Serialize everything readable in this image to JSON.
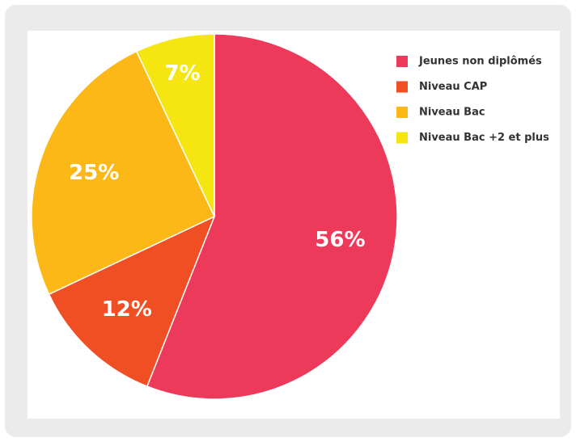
{
  "chart_data": {
    "type": "pie",
    "categories": [
      "Jeunes non diplômés",
      "Niveau CAP",
      "Niveau Bac",
      "Niveau Bac +2 et plus"
    ],
    "values": [
      56,
      12,
      25,
      7
    ],
    "value_labels": [
      "56%",
      "12%",
      "25%",
      "7%"
    ],
    "colors": [
      "#ee3a5a",
      "#f04e23",
      "#fbb817",
      "#f5e511"
    ],
    "legend": "right"
  }
}
